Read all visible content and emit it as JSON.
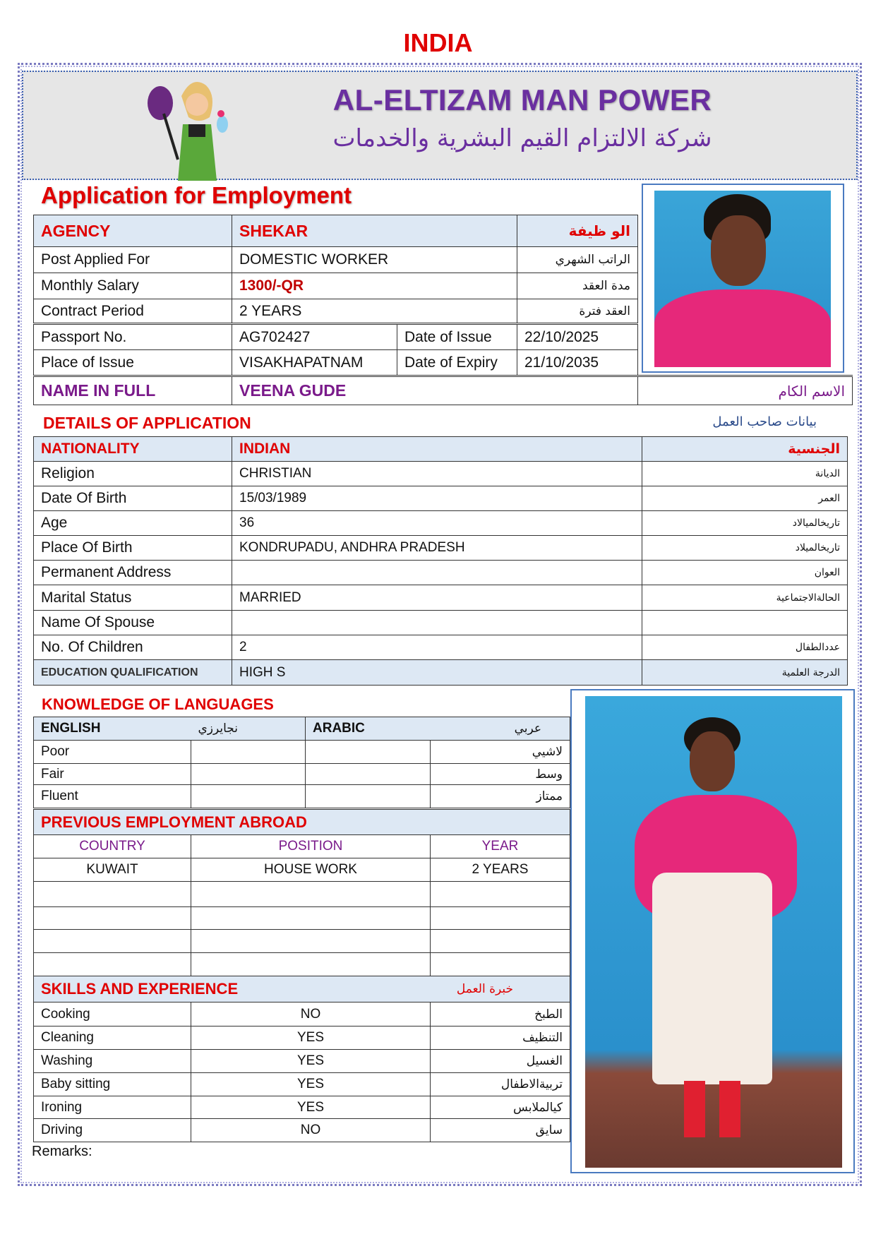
{
  "country": "INDIA",
  "company": {
    "name_en": "AL-ELTIZAM MAN POWER",
    "name_ar": "شركة الالتزام القيم البشرية والخدمات"
  },
  "form_title": "Application for Employment",
  "top": {
    "agency_label": "AGENCY",
    "agency_value": "SHEKAR",
    "agency_ar": "الو ظيفة",
    "rows": [
      {
        "label": "Post Applied For",
        "value": "DOMESTIC WORKER",
        "ar": "الراتب الشهري"
      },
      {
        "label": "Monthly Salary",
        "value": "1300/-QR",
        "ar": "مدة العقد"
      },
      {
        "label": "Contract Period",
        "value": "2 YEARS",
        "ar": "العقد فترة"
      }
    ],
    "passport_label": "Passport No.",
    "passport": "AG702427",
    "issue_date_label": "Date of Issue",
    "issue_date": "22/10/2025",
    "place_label": "Place of Issue",
    "place": "VISAKHAPATNAM",
    "expiry_label": "Date of Expiry",
    "expiry": "21/10/2035",
    "name_label": "NAME IN FULL",
    "name": "VEENA GUDE",
    "name_ar": "الاسم الكام"
  },
  "details": {
    "title": "DETAILS OF APPLICATION",
    "title_ar": "بيانات صاحب العمل",
    "nationality_label": "NATIONALITY",
    "nationality": "INDIAN",
    "nationality_ar": "الجنسية",
    "rows": [
      {
        "label": "Religion",
        "value": "CHRISTIAN",
        "ar": "الديانة"
      },
      {
        "label": "Date Of Birth",
        "value": "15/03/1989",
        "ar": "العمر"
      },
      {
        "label": "Age",
        "value": "36",
        "ar": "تاريخالميالاد"
      },
      {
        "label": "Place Of Birth",
        "value": "KONDRUPADU, ANDHRA PRADESH",
        "ar": "تاريخالميلاد"
      },
      {
        "label": "Permanent Address",
        "value": "",
        "ar": "العوان"
      },
      {
        "label": "Marital Status",
        "value": "MARRIED",
        "ar": "الحالةالاجتماعية"
      },
      {
        "label": "Name Of Spouse",
        "value": "",
        "ar": ""
      },
      {
        "label": "No. Of Children",
        "value": "2",
        "ar": "عددالطفال"
      }
    ],
    "education_label": "EDUCATION QUALIFICATION",
    "education": "HIGH S",
    "education_ar": "الدرجة العلمية"
  },
  "languages": {
    "title": "KNOWLEDGE OF LANGUAGES",
    "english": "ENGLISH",
    "english_ar": "نجايرزي",
    "arabic": "ARABIC",
    "arabic_ar": "عربي",
    "levels": [
      {
        "en": "Poor",
        "ar": "لاشيي"
      },
      {
        "en": "Fair",
        "ar": "وسط"
      },
      {
        "en": "Fluent",
        "ar": "ممتاز"
      }
    ]
  },
  "employment": {
    "title": "PREVIOUS EMPLOYMENT ABROAD",
    "headers": [
      "COUNTRY",
      "POSITION",
      "YEAR"
    ],
    "rows": [
      {
        "country": "KUWAIT",
        "position": "HOUSE WORK",
        "year": "2 YEARS"
      }
    ]
  },
  "skills": {
    "title": "SKILLS AND EXPERIENCE",
    "title_ar": "خبرة العمل",
    "rows": [
      {
        "label": "Cooking",
        "value": "NO",
        "ar": "الطبخ"
      },
      {
        "label": "Cleaning",
        "value": "YES",
        "ar": "التنظيف"
      },
      {
        "label": "Washing",
        "value": "YES",
        "ar": "الغسيل"
      },
      {
        "label": "Baby sitting",
        "value": "YES",
        "ar": "تربيةالاطفال"
      },
      {
        "label": "Ironing",
        "value": "YES",
        "ar": "كيالملابس"
      },
      {
        "label": "Driving",
        "value": "NO",
        "ar": "سايق"
      }
    ]
  },
  "remarks_label": "Remarks:",
  "colors": {
    "red": "#e00000",
    "purple": "#6a2fa0",
    "header_fill": "#dde8f4"
  }
}
